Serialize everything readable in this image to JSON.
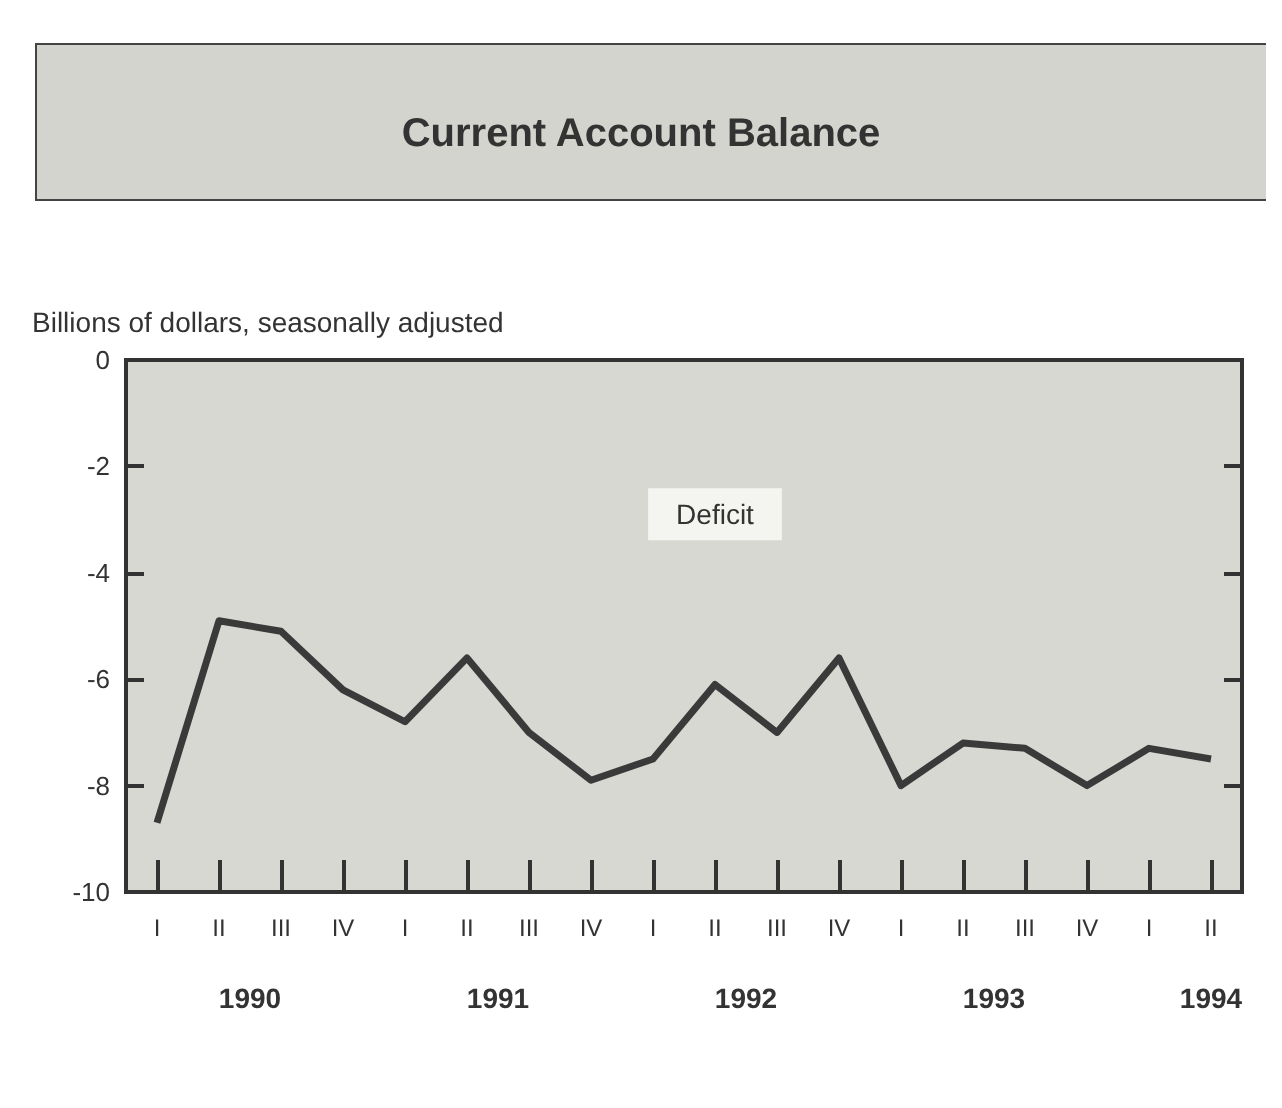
{
  "chart_data": {
    "type": "line",
    "title": "Current Account Balance",
    "ylabel": "Billions of dollars, seasonally adjusted",
    "categories": [
      "I",
      "II",
      "III",
      "IV",
      "I",
      "II",
      "III",
      "IV",
      "I",
      "II",
      "III",
      "IV",
      "I",
      "II",
      "III",
      "IV",
      "I",
      "II"
    ],
    "values": [
      -8.7,
      -4.9,
      -5.1,
      -6.2,
      -6.8,
      -5.6,
      -7.0,
      -7.9,
      -7.5,
      -6.1,
      -7.0,
      -5.6,
      -8.0,
      -7.2,
      -7.3,
      -8.0,
      -7.3,
      -7.5
    ],
    "color": "#3a3a3a",
    "ylim": [
      -10,
      0
    ],
    "yticks": [
      -10,
      -8,
      -6,
      -4,
      -2,
      0
    ],
    "grid": false,
    "marker": "none",
    "line_style": "solid",
    "annotations": [
      "Deficit",
      "1990",
      "1991",
      "1992",
      "1993",
      "1994"
    ]
  }
}
